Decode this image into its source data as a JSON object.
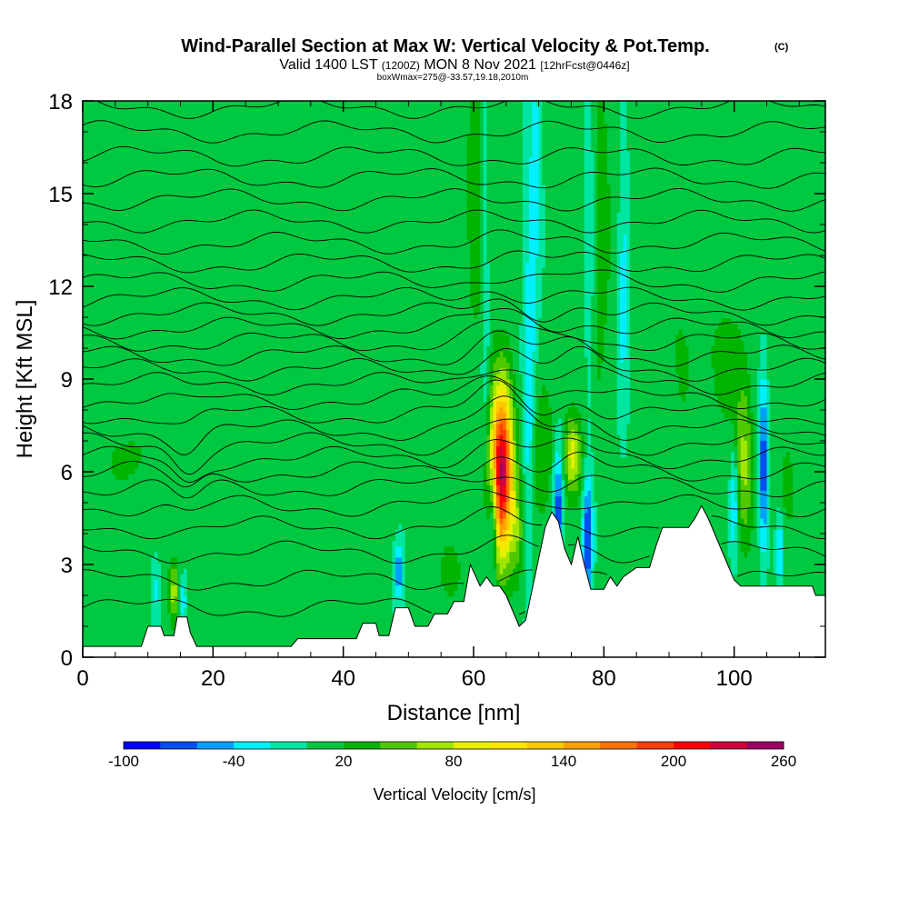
{
  "header": {
    "title": "Wind-Parallel Section at Max W: Vertical Velocity & Pot.Temp.",
    "copyright": "(C)",
    "subtitle_main": "Valid 1400 LST",
    "subtitle_zulu": "(1200Z)",
    "subtitle_date": "MON 8 Nov 2021",
    "subtitle_fcst": "[12hrFcst@0446z]",
    "box_info": "boxWmax=275@-33.57,19.18,2010m"
  },
  "chart_data": {
    "type": "heatmap",
    "xlabel": "Distance [nm]",
    "ylabel": "Height [Kft MSL]",
    "xlim": [
      0,
      114
    ],
    "ylim": [
      0,
      18
    ],
    "x_ticks": [
      0,
      20,
      40,
      60,
      80,
      100
    ],
    "y_ticks": [
      0,
      3,
      6,
      9,
      12,
      15,
      18
    ],
    "colorbar": {
      "label": "Vertical Velocity [cm/s]",
      "tick_labels": [
        "-100",
        "-40",
        "20",
        "80",
        "140",
        "200",
        "260"
      ],
      "min": -100,
      "max": 260,
      "step": 20,
      "colors": [
        "#0000ff",
        "#0050f0",
        "#00a0ff",
        "#00f0ff",
        "#00e6a0",
        "#00c840",
        "#00b400",
        "#50c800",
        "#a0e600",
        "#e6f000",
        "#ffe600",
        "#ffc800",
        "#ffa000",
        "#ff7000",
        "#ff4000",
        "#ff0000",
        "#d2003c",
        "#a00064"
      ]
    },
    "terrain_profile": [
      [
        0,
        0.35
      ],
      [
        9,
        0.35
      ],
      [
        10,
        1.0
      ],
      [
        12,
        1.0
      ],
      [
        12.5,
        0.7
      ],
      [
        14,
        0.7
      ],
      [
        14.5,
        1.3
      ],
      [
        16,
        1.3
      ],
      [
        16.5,
        0.8
      ],
      [
        17.5,
        0.35
      ],
      [
        32,
        0.35
      ],
      [
        33,
        0.6
      ],
      [
        42,
        0.6
      ],
      [
        43,
        1.1
      ],
      [
        45,
        1.1
      ],
      [
        45.5,
        0.7
      ],
      [
        47,
        0.7
      ],
      [
        48,
        1.6
      ],
      [
        50,
        1.6
      ],
      [
        51,
        1.0
      ],
      [
        53,
        1.0
      ],
      [
        54,
        1.4
      ],
      [
        56,
        1.4
      ],
      [
        57,
        1.8
      ],
      [
        58.5,
        1.8
      ],
      [
        59.5,
        3.0
      ],
      [
        61,
        2.3
      ],
      [
        62,
        2.6
      ],
      [
        63,
        2.3
      ],
      [
        64,
        2.3
      ],
      [
        65,
        2.0
      ],
      [
        66,
        1.5
      ],
      [
        67,
        1.0
      ],
      [
        68,
        1.2
      ],
      [
        69,
        2.2
      ],
      [
        70,
        3.2
      ],
      [
        71,
        4.2
      ],
      [
        72,
        4.7
      ],
      [
        73,
        4.4
      ],
      [
        74,
        3.5
      ],
      [
        75,
        3.0
      ],
      [
        76,
        3.9
      ],
      [
        77,
        3.0
      ],
      [
        78,
        2.2
      ],
      [
        80,
        2.2
      ],
      [
        81,
        2.6
      ],
      [
        82,
        2.3
      ],
      [
        83,
        2.6
      ],
      [
        85,
        2.9
      ],
      [
        87,
        2.9
      ],
      [
        88,
        3.6
      ],
      [
        89,
        4.2
      ],
      [
        93,
        4.2
      ],
      [
        94,
        4.5
      ],
      [
        95,
        4.9
      ],
      [
        96,
        4.5
      ],
      [
        97,
        4.0
      ],
      [
        98,
        3.5
      ],
      [
        99,
        3.0
      ],
      [
        100,
        2.5
      ],
      [
        101,
        2.3
      ],
      [
        112,
        2.3
      ],
      [
        112.5,
        2.0
      ],
      [
        114,
        2.0
      ]
    ],
    "updrafts": [
      {
        "x": 64.3,
        "z": 6.0,
        "sx": 1.2,
        "sz": 1.9,
        "w": 240
      },
      {
        "x": 75.2,
        "z": 6.6,
        "sx": 0.9,
        "sz": 0.9,
        "w": 85
      },
      {
        "x": 14.0,
        "z": 2.1,
        "sx": 0.55,
        "sz": 0.7,
        "w": 65
      },
      {
        "x": 101.5,
        "z": 6.3,
        "sx": 0.9,
        "sz": 1.8,
        "w": 60
      },
      {
        "x": 56.5,
        "z": 2.8,
        "sx": 1.2,
        "sz": 0.7,
        "w": 30
      },
      {
        "x": 61.0,
        "z": 15.0,
        "sx": 1.6,
        "sz": 4.0,
        "w": 30
      },
      {
        "x": 79.0,
        "z": 14.0,
        "sx": 1.6,
        "sz": 4.0,
        "w": 28
      },
      {
        "x": 70.5,
        "z": 6.5,
        "sx": 1.2,
        "sz": 1.6,
        "w": 35
      },
      {
        "x": 66.7,
        "z": 4.0,
        "sx": 0.7,
        "sz": 1.1,
        "w": 40
      },
      {
        "x": 7.0,
        "z": 6.4,
        "sx": 4.0,
        "sz": 0.9,
        "w": 18
      },
      {
        "x": 98.5,
        "z": 9.5,
        "sx": 2.5,
        "sz": 1.6,
        "w": 22
      },
      {
        "x": 91.0,
        "z": 11.0,
        "sx": 2.5,
        "sz": 5.0,
        "w": 14
      },
      {
        "x": 22.0,
        "z": 15.0,
        "sx": 2.0,
        "sz": 5.0,
        "w": 12
      },
      {
        "x": 38.0,
        "z": 14.0,
        "sx": 2.0,
        "sz": 5.0,
        "w": 12
      },
      {
        "x": 108.0,
        "z": 5.5,
        "sx": 1.2,
        "sz": 1.5,
        "w": 20
      }
    ],
    "downdrafts": [
      {
        "x": 63.0,
        "z": 4.5,
        "sx": 0.5,
        "sz": 1.2,
        "w": -75
      },
      {
        "x": 73.0,
        "z": 4.8,
        "sx": 0.5,
        "sz": 1.5,
        "w": -80
      },
      {
        "x": 77.5,
        "z": 3.8,
        "sx": 0.5,
        "sz": 1.3,
        "w": -90
      },
      {
        "x": 48.5,
        "z": 2.8,
        "sx": 0.5,
        "sz": 0.7,
        "w": -60
      },
      {
        "x": 11.2,
        "z": 2.2,
        "sx": 0.5,
        "sz": 0.7,
        "w": -30
      },
      {
        "x": 15.3,
        "z": 1.8,
        "sx": 0.45,
        "sz": 0.5,
        "w": -45
      },
      {
        "x": 104.5,
        "z": 6.2,
        "sx": 0.45,
        "sz": 1.9,
        "w": -85
      },
      {
        "x": 100.0,
        "z": 5.0,
        "sx": 0.4,
        "sz": 1.2,
        "w": -50
      },
      {
        "x": 107.0,
        "z": 3.5,
        "sx": 0.4,
        "sz": 0.8,
        "w": -50
      },
      {
        "x": 68.5,
        "z": 9.0,
        "sx": 0.6,
        "sz": 4.0,
        "w": -45
      },
      {
        "x": 61.8,
        "z": 14.0,
        "sx": 0.5,
        "sz": 5.0,
        "w": -40
      },
      {
        "x": 77.8,
        "z": 14.5,
        "sx": 0.6,
        "sz": 4.5,
        "w": -40
      },
      {
        "x": 83.0,
        "z": 12.0,
        "sx": 0.6,
        "sz": 3.0,
        "w": -35
      },
      {
        "x": 69.5,
        "z": 15.5,
        "sx": 0.6,
        "sz": 3.0,
        "w": -35
      }
    ],
    "isentrope_levels": [
      1.6,
      2.5,
      3.4,
      4.2,
      4.9,
      5.5,
      6.0,
      6.45,
      6.9,
      7.35,
      7.85,
      8.35,
      8.85,
      9.3,
      9.75,
      10.2,
      10.65,
      11.1,
      11.6,
      12.15,
      12.75,
      13.4,
      14.1,
      14.8,
      15.5,
      16.2,
      17.0,
      17.8
    ]
  }
}
